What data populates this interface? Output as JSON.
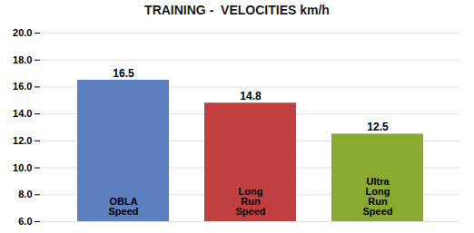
{
  "chart_data": {
    "type": "bar",
    "title": "TRAINING -  VELOCITIES km/h",
    "categories": [
      "OBLA\nSpeed",
      "Long\nRun\nSpeed",
      "Ultra\nLong\nRun\nSpeed"
    ],
    "values": [
      16.5,
      14.8,
      12.5
    ],
    "colors": [
      "#5b7fbf",
      "#c04040",
      "#8aaa30"
    ],
    "ylim": [
      6.0,
      20.0
    ],
    "yticks": [
      {
        "value": 6.0,
        "label": "6.0"
      },
      {
        "value": 8.0,
        "label": "8.0"
      },
      {
        "value": 10.0,
        "label": "10.0"
      },
      {
        "value": 12.0,
        "label": "12.0"
      },
      {
        "value": 14.0,
        "label": "14.0"
      },
      {
        "value": 16.0,
        "label": "16.0"
      },
      {
        "value": 18.0,
        "label": "18.0"
      },
      {
        "value": 20.0,
        "label": "20.0"
      }
    ],
    "grid": true,
    "data_labels": true,
    "tick_labels": "y"
  }
}
